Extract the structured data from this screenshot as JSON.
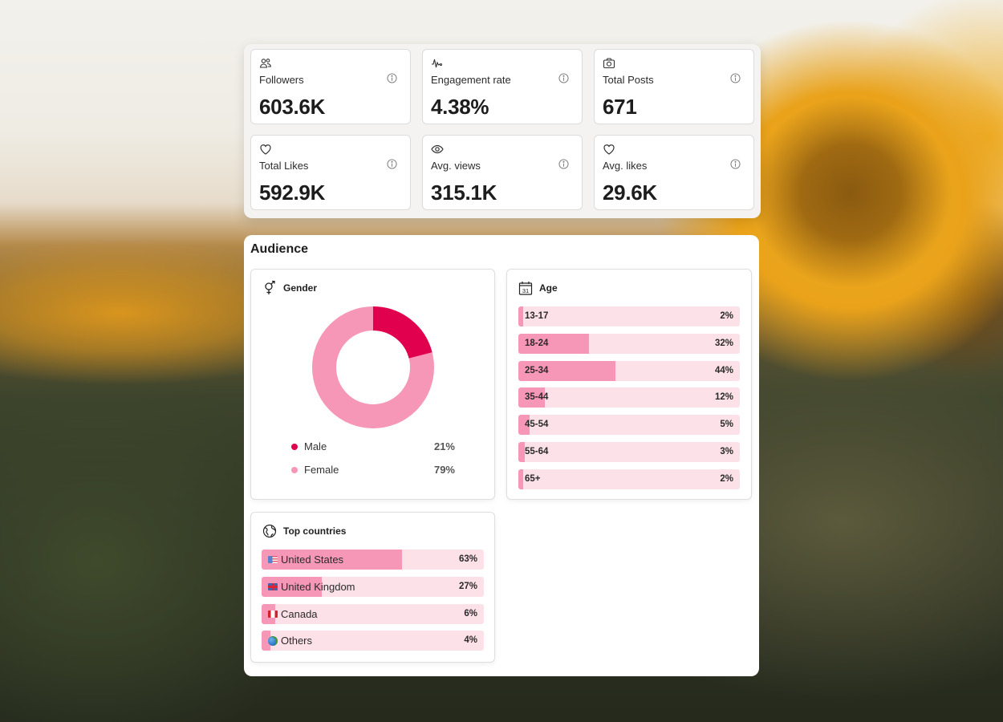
{
  "stats": [
    {
      "icon": "users-icon",
      "label": "Followers",
      "value": "603.6K"
    },
    {
      "icon": "activity-icon",
      "label": "Engagement rate",
      "value": "4.38%"
    },
    {
      "icon": "camera-icon",
      "label": "Total Posts",
      "value": "671"
    },
    {
      "icon": "heart-icon",
      "label": "Total Likes",
      "value": "592.9K"
    },
    {
      "icon": "eye-icon",
      "label": "Avg. views",
      "value": "315.1K"
    },
    {
      "icon": "heart-icon",
      "label": "Avg. likes",
      "value": "29.6K"
    }
  ],
  "audience": {
    "title": "Audience",
    "gender": {
      "title": "Gender",
      "items": [
        {
          "label": "Male",
          "value": "21%",
          "percent": 21,
          "color": "#e0004d"
        },
        {
          "label": "Female",
          "value": "79%",
          "percent": 79,
          "color": "#f797b7"
        }
      ]
    },
    "age": {
      "title": "Age",
      "items": [
        {
          "label": "13-17",
          "value": "2%",
          "percent": 2
        },
        {
          "label": "18-24",
          "value": "32%",
          "percent": 32
        },
        {
          "label": "25-34",
          "value": "44%",
          "percent": 44
        },
        {
          "label": "35-44",
          "value": "12%",
          "percent": 12
        },
        {
          "label": "45-54",
          "value": "5%",
          "percent": 5
        },
        {
          "label": "55-64",
          "value": "3%",
          "percent": 3
        },
        {
          "label": "65+",
          "value": "2%",
          "percent": 2
        }
      ]
    },
    "countries": {
      "title": "Top countries",
      "items": [
        {
          "flag": "us-flag",
          "label": "United States",
          "value": "63%",
          "percent": 63
        },
        {
          "flag": "uk-flag",
          "label": "United Kingdom",
          "value": "27%",
          "percent": 27
        },
        {
          "flag": "ca-flag",
          "label": "Canada",
          "value": "6%",
          "percent": 6
        },
        {
          "flag": "globe",
          "label": "Others",
          "value": "4%",
          "percent": 4
        }
      ]
    }
  },
  "colors": {
    "accent": "#e0004d",
    "bar_fill": "#f797b7",
    "bar_track": "#fde1e9"
  }
}
